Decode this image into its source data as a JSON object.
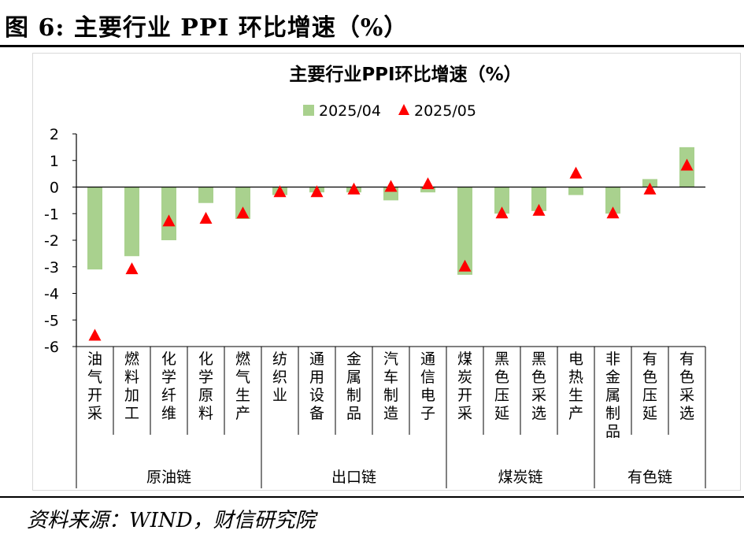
{
  "figure": {
    "title": "图 6:  主要行业 PPI 环比增速（%）",
    "source": "资料来源：WIND，财信研究院"
  },
  "chart_data": {
    "type": "bar",
    "title": "主要行业PPI环比增速（%）",
    "ylim": [
      -6,
      2
    ],
    "yticks": [
      2,
      1,
      0,
      -1,
      -2,
      -3,
      -4,
      -5,
      -6
    ],
    "grid": false,
    "legend_position": "top-center",
    "categories": [
      "油气开采",
      "燃料加工",
      "化学纤维",
      "化学原料",
      "燃气生产",
      "纺织业",
      "通用设备",
      "金属制品",
      "汽车制造",
      "通信电子",
      "煤炭开采",
      "黑色压延",
      "黑色采选",
      "电热生产",
      "非金属制品",
      "有色压延",
      "有色采选"
    ],
    "groups": [
      {
        "name": "原油链",
        "count": 5
      },
      {
        "name": "出口链",
        "count": 5
      },
      {
        "name": "煤炭链",
        "count": 4
      },
      {
        "name": "有色链",
        "count": 3
      }
    ],
    "series": [
      {
        "name": "2025/04",
        "kind": "bar",
        "color": "#a9d18e",
        "values": [
          -3.1,
          -2.6,
          -2.0,
          -0.6,
          -1.2,
          -0.3,
          -0.2,
          -0.2,
          -0.5,
          -0.2,
          -3.3,
          -1.0,
          -0.9,
          -0.3,
          -1.0,
          0.3,
          1.5
        ]
      },
      {
        "name": "2025/05",
        "kind": "marker",
        "marker": "triangle",
        "color": "#ff0000",
        "values": [
          -5.6,
          -3.1,
          -1.3,
          -1.2,
          -1.0,
          -0.2,
          -0.2,
          -0.1,
          0.0,
          0.1,
          -3.0,
          -1.0,
          -0.9,
          0.5,
          -1.0,
          -0.1,
          0.8
        ]
      }
    ]
  }
}
